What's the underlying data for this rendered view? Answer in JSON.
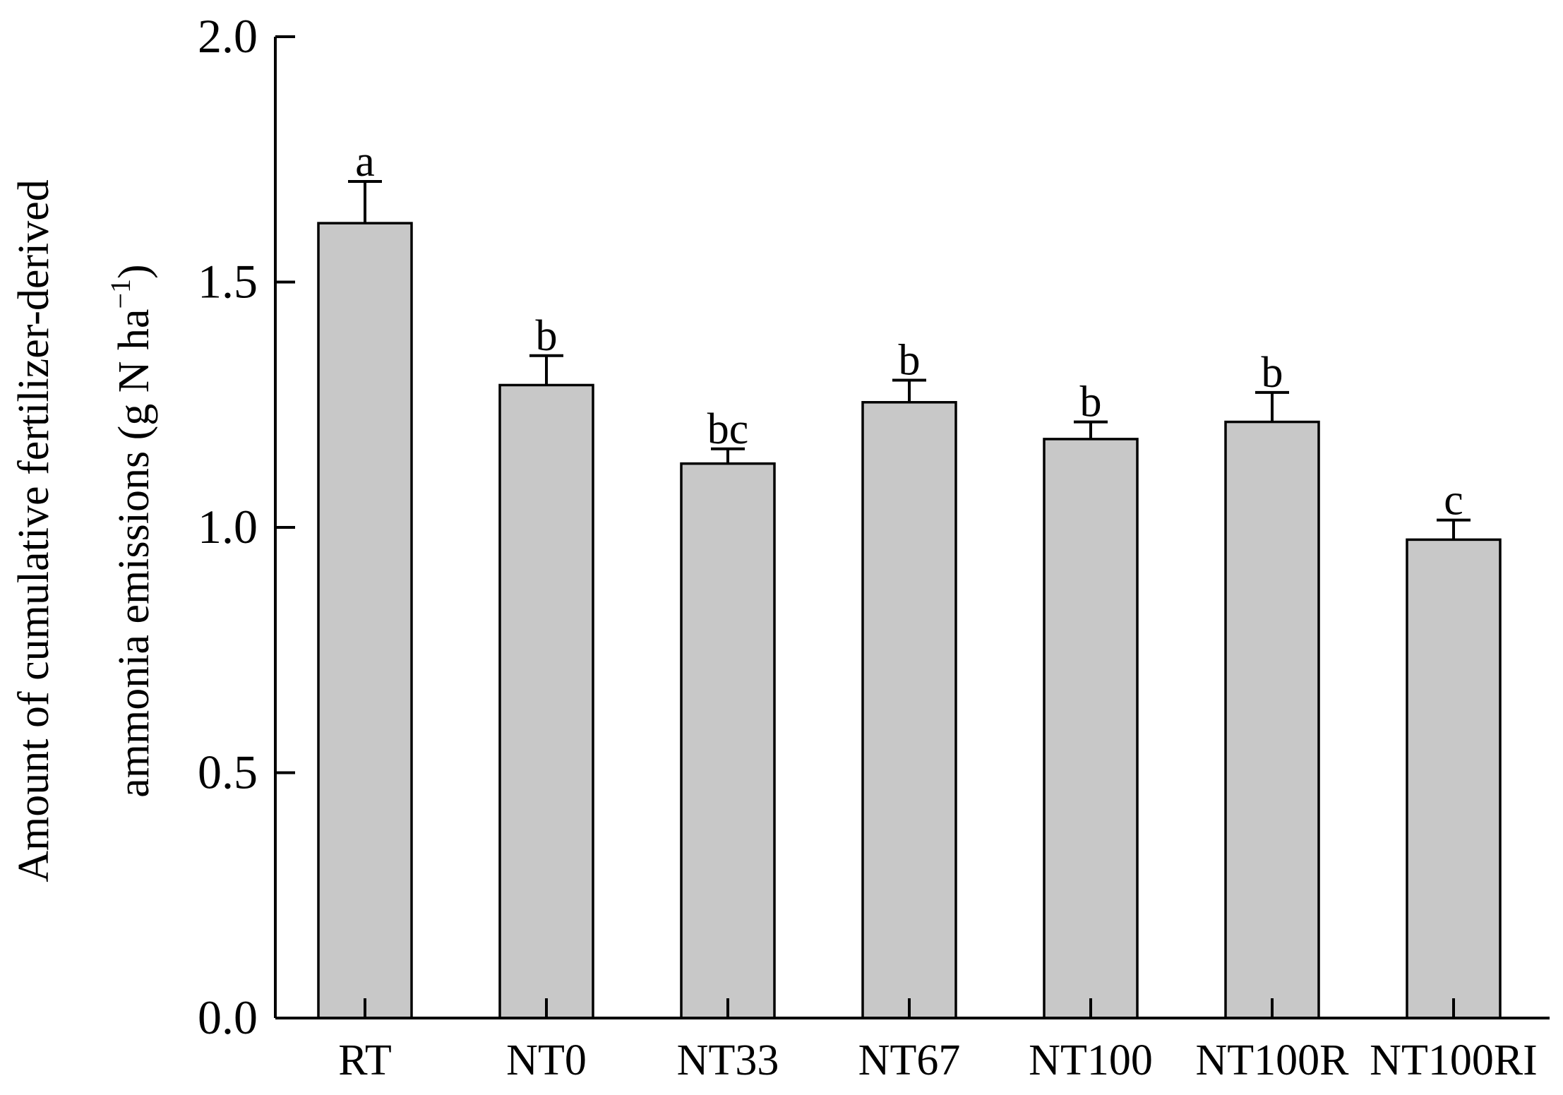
{
  "chart_data": {
    "type": "bar",
    "categories": [
      "RT",
      "NT0",
      "NT33",
      "NT67",
      "NT100",
      "NT100R",
      "NT100RI"
    ],
    "values": [
      1.62,
      1.29,
      1.13,
      1.255,
      1.18,
      1.215,
      0.975
    ],
    "errors": [
      0.085,
      0.06,
      0.03,
      0.045,
      0.035,
      0.06,
      0.04
    ],
    "significance": [
      "a",
      "b",
      "bc",
      "b",
      "b",
      "b",
      "c"
    ],
    "ylim": [
      0,
      2.0
    ],
    "yticks": [
      "0.0",
      "0.5",
      "1.0",
      "1.5",
      "2.0"
    ],
    "ylabel": {
      "line1": "Amount of cumulative fertilizer-derived",
      "line2_main": "ammonia emissions (g N ha",
      "line2_sup": "−1",
      "line2_end": ")"
    },
    "xlabel": "",
    "title": "",
    "bar_color": "#c8c8c8",
    "grid": false,
    "legend": "none"
  }
}
